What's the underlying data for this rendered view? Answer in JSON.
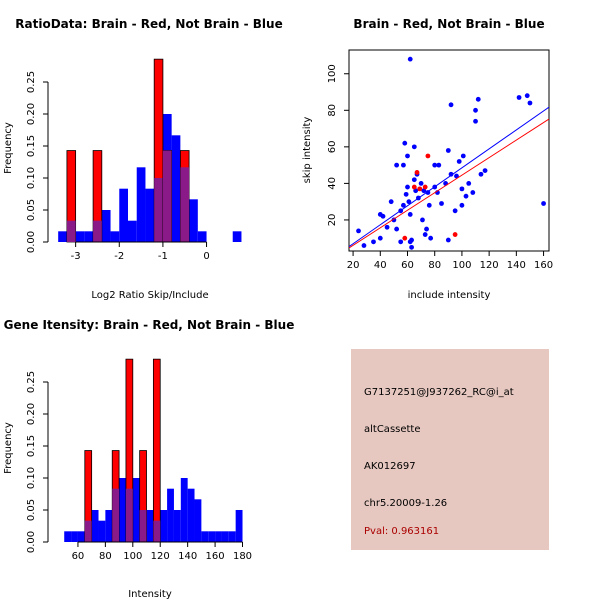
{
  "colors": {
    "brain": "#ff0000",
    "not_brain": "#0000ff",
    "overlap": "#8b1a89",
    "panel_bg": "#e6c8c0",
    "pval_text": "#aa0000"
  },
  "chart_data": [
    {
      "id": "ratio",
      "type": "histogram",
      "title": "RatioData: Brain - Red, Not Brain - Blue",
      "xlabel": "Log2 Ratio Skip/Include",
      "ylabel": "Frequency",
      "xlim": [
        -3.45,
        0.95
      ],
      "ylim": [
        0,
        0.3
      ],
      "xticks": [
        -3,
        -2,
        -1,
        0
      ],
      "yticks": [
        0.0,
        0.05,
        0.1,
        0.15,
        0.2,
        0.25
      ],
      "xtick_labels": [
        "-3",
        "-2",
        "-1",
        "0"
      ],
      "ytick_labels": [
        "0.00",
        "0.05",
        "0.10",
        "0.15",
        "0.20",
        "0.25"
      ],
      "series": [
        {
          "name": "Not Brain",
          "color": "blue",
          "bins": [
            {
              "x0": -3.4,
              "x1": -3.2,
              "v": 0.0167
            },
            {
              "x0": -3.2,
              "x1": -3.0,
              "v": 0.0333
            },
            {
              "x0": -3.0,
              "x1": -2.8,
              "v": 0.0167
            },
            {
              "x0": -2.8,
              "x1": -2.6,
              "v": 0.0167
            },
            {
              "x0": -2.6,
              "x1": -2.4,
              "v": 0.0333
            },
            {
              "x0": -2.4,
              "x1": -2.2,
              "v": 0.05
            },
            {
              "x0": -2.2,
              "x1": -2.0,
              "v": 0.0167
            },
            {
              "x0": -2.0,
              "x1": -1.8,
              "v": 0.0833
            },
            {
              "x0": -1.8,
              "x1": -1.6,
              "v": 0.0333
            },
            {
              "x0": -1.6,
              "x1": -1.4,
              "v": 0.1167
            },
            {
              "x0": -1.4,
              "x1": -1.2,
              "v": 0.0833
            },
            {
              "x0": -1.2,
              "x1": -1.0,
              "v": 0.1
            },
            {
              "x0": -1.0,
              "x1": -0.8,
              "v": 0.2
            },
            {
              "x0": -0.8,
              "x1": -0.6,
              "v": 0.1667
            },
            {
              "x0": -0.6,
              "x1": -0.4,
              "v": 0.1167
            },
            {
              "x0": -0.4,
              "x1": -0.2,
              "v": 0.0667
            },
            {
              "x0": -0.2,
              "x1": 0.0,
              "v": 0.0167
            },
            {
              "x0": 0.6,
              "x1": 0.8,
              "v": 0.0167
            }
          ]
        },
        {
          "name": "Brain",
          "color": "red",
          "bins": [
            {
              "x0": -3.2,
              "x1": -3.0,
              "v": 0.1429
            },
            {
              "x0": -2.6,
              "x1": -2.4,
              "v": 0.1429
            },
            {
              "x0": -1.2,
              "x1": -1.0,
              "v": 0.2857
            },
            {
              "x0": -1.0,
              "x1": -0.8,
              "v": 0.1429
            },
            {
              "x0": -0.6,
              "x1": -0.4,
              "v": 0.1429
            }
          ]
        }
      ]
    },
    {
      "id": "scatter",
      "type": "scatter",
      "title": "Brain - Red, Not Brain - Blue",
      "xlabel": "include intensity",
      "ylabel": "skip intensity",
      "xlim": [
        17,
        164
      ],
      "ylim": [
        3,
        113
      ],
      "xticks": [
        20,
        40,
        60,
        80,
        100,
        120,
        140,
        160
      ],
      "yticks": [
        20,
        40,
        60,
        80,
        100
      ],
      "xtick_labels": [
        "20",
        "40",
        "60",
        "80",
        "100",
        "120",
        "140",
        "160"
      ],
      "ytick_labels": [
        "20",
        "40",
        "60",
        "80",
        "100"
      ],
      "series": [
        {
          "name": "Not Brain",
          "color": "blue",
          "points": [
            [
              62,
              108
            ],
            [
              24,
              14
            ],
            [
              28,
              6
            ],
            [
              35,
              8
            ],
            [
              40,
              10
            ],
            [
              42,
              22
            ],
            [
              45,
              16
            ],
            [
              48,
              30
            ],
            [
              50,
              20
            ],
            [
              52,
              15
            ],
            [
              52,
              50
            ],
            [
              55,
              8
            ],
            [
              55,
              25
            ],
            [
              57,
              50
            ],
            [
              57,
              28
            ],
            [
              58,
              62
            ],
            [
              59,
              34
            ],
            [
              60,
              55
            ],
            [
              60,
              38
            ],
            [
              61,
              30
            ],
            [
              62,
              23
            ],
            [
              63,
              9
            ],
            [
              63,
              5
            ],
            [
              65,
              60
            ],
            [
              65,
              42
            ],
            [
              66,
              36
            ],
            [
              67,
              45
            ],
            [
              68,
              32
            ],
            [
              70,
              40
            ],
            [
              71,
              20
            ],
            [
              72,
              36
            ],
            [
              73,
              12
            ],
            [
              74,
              15
            ],
            [
              75,
              35
            ],
            [
              76,
              28
            ],
            [
              77,
              10
            ],
            [
              80,
              50
            ],
            [
              80,
              38
            ],
            [
              82,
              35
            ],
            [
              83,
              50
            ],
            [
              85,
              29
            ],
            [
              88,
              40
            ],
            [
              90,
              58
            ],
            [
              92,
              83
            ],
            [
              92,
              45
            ],
            [
              95,
              25
            ],
            [
              96,
              44
            ],
            [
              98,
              52
            ],
            [
              100,
              37
            ],
            [
              101,
              55
            ],
            [
              103,
              33
            ],
            [
              105,
              40
            ],
            [
              108,
              35
            ],
            [
              110,
              74
            ],
            [
              110,
              80
            ],
            [
              112,
              86
            ],
            [
              114,
              45
            ],
            [
              117,
              47
            ],
            [
              142,
              87
            ],
            [
              148,
              88
            ],
            [
              150,
              84
            ],
            [
              160,
              29
            ],
            [
              90,
              9
            ],
            [
              40,
              23
            ],
            [
              62,
              8
            ],
            [
              100,
              28
            ]
          ]
        },
        {
          "name": "Brain",
          "color": "red",
          "points": [
            [
              58,
              10
            ],
            [
              67,
              46
            ],
            [
              69,
              37
            ],
            [
              73,
              38
            ],
            [
              75,
              55
            ],
            [
              95,
              12
            ],
            [
              65,
              38
            ]
          ]
        }
      ],
      "lines": [
        {
          "name": "Not Brain fit",
          "color": "blue",
          "intercept": -3.4,
          "slope": 0.519
        },
        {
          "name": "Brain fit",
          "color": "red",
          "intercept": -3.5,
          "slope": 0.48
        }
      ]
    },
    {
      "id": "gene",
      "type": "histogram",
      "title": "Gene Itensity: Brain - Red, Not Brain - Blue",
      "xlabel": "Intensity",
      "ylabel": "Frequency",
      "xlim": [
        44,
        184
      ],
      "ylim": [
        0,
        0.3
      ],
      "xticks": [
        60,
        80,
        100,
        120,
        140,
        160,
        180
      ],
      "yticks": [
        0.0,
        0.05,
        0.1,
        0.15,
        0.2,
        0.25
      ],
      "xtick_labels": [
        "60",
        "80",
        "100",
        "120",
        "140",
        "160",
        "180"
      ],
      "ytick_labels": [
        "0.00",
        "0.05",
        "0.10",
        "0.15",
        "0.20",
        "0.25"
      ],
      "series": [
        {
          "name": "Not Brain",
          "color": "blue",
          "bins": [
            {
              "x0": 50,
              "x1": 55,
              "v": 0.0167
            },
            {
              "x0": 55,
              "x1": 60,
              "v": 0.0167
            },
            {
              "x0": 60,
              "x1": 65,
              "v": 0.0167
            },
            {
              "x0": 65,
              "x1": 70,
              "v": 0.0333
            },
            {
              "x0": 70,
              "x1": 75,
              "v": 0.05
            },
            {
              "x0": 75,
              "x1": 80,
              "v": 0.0333
            },
            {
              "x0": 80,
              "x1": 85,
              "v": 0.05
            },
            {
              "x0": 85,
              "x1": 90,
              "v": 0.0833
            },
            {
              "x0": 90,
              "x1": 95,
              "v": 0.1
            },
            {
              "x0": 95,
              "x1": 100,
              "v": 0.0833
            },
            {
              "x0": 100,
              "x1": 105,
              "v": 0.1
            },
            {
              "x0": 105,
              "x1": 110,
              "v": 0.05
            },
            {
              "x0": 110,
              "x1": 115,
              "v": 0.05
            },
            {
              "x0": 115,
              "x1": 120,
              "v": 0.0333
            },
            {
              "x0": 120,
              "x1": 125,
              "v": 0.05
            },
            {
              "x0": 125,
              "x1": 130,
              "v": 0.0833
            },
            {
              "x0": 130,
              "x1": 135,
              "v": 0.05
            },
            {
              "x0": 135,
              "x1": 140,
              "v": 0.1
            },
            {
              "x0": 140,
              "x1": 145,
              "v": 0.0833
            },
            {
              "x0": 145,
              "x1": 150,
              "v": 0.0667
            },
            {
              "x0": 150,
              "x1": 155,
              "v": 0.0167
            },
            {
              "x0": 155,
              "x1": 160,
              "v": 0.0167
            },
            {
              "x0": 160,
              "x1": 165,
              "v": 0.0167
            },
            {
              "x0": 165,
              "x1": 170,
              "v": 0.0167
            },
            {
              "x0": 170,
              "x1": 175,
              "v": 0.0167
            },
            {
              "x0": 175,
              "x1": 180,
              "v": 0.05
            }
          ]
        },
        {
          "name": "Brain",
          "color": "red",
          "bins": [
            {
              "x0": 65,
              "x1": 70,
              "v": 0.1429
            },
            {
              "x0": 85,
              "x1": 90,
              "v": 0.1429
            },
            {
              "x0": 95,
              "x1": 100,
              "v": 0.2857
            },
            {
              "x0": 105,
              "x1": 110,
              "v": 0.1429
            },
            {
              "x0": 115,
              "x1": 120,
              "v": 0.2857
            }
          ]
        }
      ]
    }
  ],
  "info": {
    "probe_id": "G7137251@J937262_RC@i_at",
    "event_type": "altCassette",
    "accession": "AK012697",
    "location": "chr5.20009-1.26",
    "pval": "Pval: 0.963161"
  }
}
